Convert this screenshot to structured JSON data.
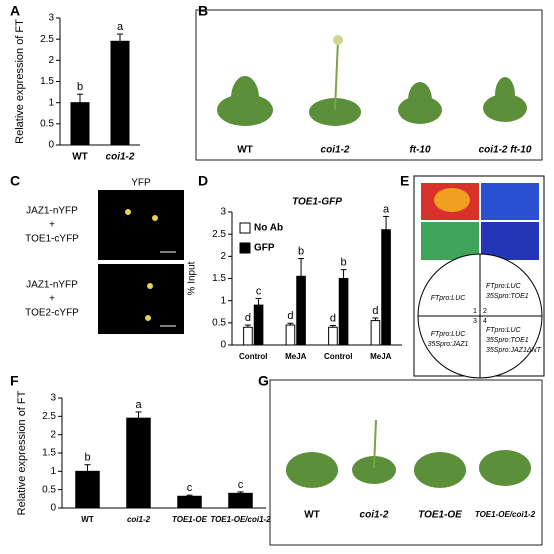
{
  "chart_data": [
    {
      "type": "bar",
      "panel": "A",
      "ylabel": "Relative expression of FT",
      "categories": [
        "WT",
        "coi1-2"
      ],
      "values": [
        1.0,
        2.45
      ],
      "errors": [
        0.2,
        0.17
      ],
      "letters": [
        "b",
        "a"
      ],
      "color": "#000000",
      "ylim": [
        0,
        3
      ],
      "yticks": [
        0,
        0.5,
        1,
        1.5,
        2,
        2.5,
        3
      ]
    },
    {
      "type": "bar",
      "panel": "D",
      "title": "TOE1-GFP",
      "ylabel": "% Input",
      "categories": [
        "Control",
        "MeJA",
        "Control",
        "MeJA"
      ],
      "series": [
        {
          "name": "No Ab",
          "color": "#ffffff",
          "values": [
            0.4,
            0.45,
            0.4,
            0.55
          ],
          "errors": [
            0.05,
            0.04,
            0.04,
            0.06
          ],
          "letters": [
            "d",
            "d",
            "d",
            "d"
          ]
        },
        {
          "name": "GFP",
          "color": "#000000",
          "values": [
            0.9,
            1.55,
            1.5,
            2.6
          ],
          "errors": [
            0.15,
            0.4,
            0.2,
            0.3
          ],
          "letters": [
            "c",
            "b",
            "b",
            "a"
          ]
        }
      ],
      "ylim": [
        0,
        3
      ],
      "yticks": [
        0,
        0.5,
        1,
        1.5,
        2,
        2.5,
        3
      ]
    },
    {
      "type": "bar",
      "panel": "F",
      "ylabel": "Relative expression of FT",
      "categories": [
        "WT",
        "coi1-2",
        "TOE1-OE",
        "TOE1-OE/coi1-2"
      ],
      "values": [
        1.0,
        2.45,
        0.32,
        0.4
      ],
      "errors": [
        0.18,
        0.17,
        0.03,
        0.04
      ],
      "letters": [
        "b",
        "a",
        "c",
        "c"
      ],
      "color": "#000000",
      "ylim": [
        0,
        3
      ],
      "yticks": [
        0,
        0.5,
        1,
        1.5,
        2,
        2.5,
        3
      ]
    }
  ],
  "panels": {
    "B": {
      "label": "B",
      "captions": [
        "WT",
        "coi1-2",
        "ft-10",
        "coi1-2 ft-10"
      ]
    },
    "C": {
      "label": "C",
      "title": "YFP",
      "rows": [
        [
          "JAZ1-nYFP",
          "+",
          "TOE1-cYFP"
        ],
        [
          "JAZ1-nYFP",
          "+",
          "TOE2-cYFP"
        ]
      ]
    },
    "E": {
      "label": "E",
      "numbers": [
        "1",
        "2",
        "3",
        "4"
      ],
      "quadrants": [
        [
          "FTpro:LUC"
        ],
        [
          "FTpro:LUC",
          "35Spro:TOE1"
        ],
        [
          "FTpro:LUC",
          "35Spro:TOE1",
          "35Spro:JAZ1ΔNT"
        ],
        [
          "FTpro:LUC",
          "35Spro:JAZ1"
        ]
      ]
    },
    "G": {
      "label": "G",
      "captions": [
        "WT",
        "coi1-2",
        "TOE1-OE",
        "TOE1-OE/coi1-2"
      ]
    }
  }
}
